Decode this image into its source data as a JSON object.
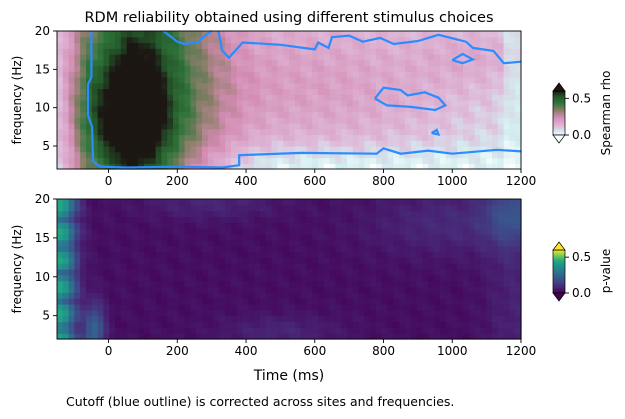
{
  "figure": {
    "title": "RDM reliability obtained using different stimulus choices",
    "caption": "Cutoff (blue outline) is corrected across sites and frequencies.",
    "xlabel": "Time (ms)"
  },
  "chart_data": [
    {
      "type": "heatmap",
      "title": "RDM reliability obtained using different stimulus choices",
      "xlabel": "",
      "ylabel": "frequency (Hz)",
      "xlim": [
        -150,
        1200
      ],
      "ylim": [
        2,
        20
      ],
      "x_ticks": [
        0,
        200,
        400,
        600,
        800,
        1000,
        1200
      ],
      "y_ticks": [
        5,
        10,
        15,
        20
      ],
      "colorbar": {
        "label": "Spearman rho",
        "ticks": [
          0.0,
          0.5
        ],
        "range": [
          0.0,
          0.6
        ],
        "colormap": "cubehelix-pink-green"
      },
      "contour": {
        "color": "#2b8cff",
        "meaning": "Cutoff (blue outline)"
      },
      "grid": false
    },
    {
      "type": "heatmap",
      "title": "",
      "xlabel": "Time (ms)",
      "ylabel": "frequency (Hz)",
      "xlim": [
        -150,
        1200
      ],
      "ylim": [
        2,
        20
      ],
      "x_ticks": [
        0,
        200,
        400,
        600,
        800,
        1000,
        1200
      ],
      "y_ticks": [
        5,
        10,
        15,
        20
      ],
      "colorbar": {
        "label": "p-value",
        "ticks": [
          0.0,
          0.5
        ],
        "range": [
          0.0,
          0.6
        ],
        "colormap": "viridis"
      },
      "grid": false
    }
  ]
}
